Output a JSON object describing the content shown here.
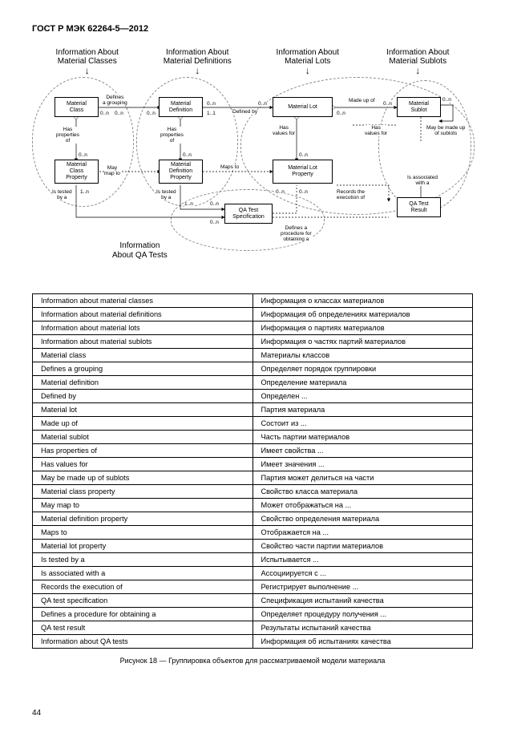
{
  "header": "ГОСТ Р МЭК 62264-5—2012",
  "group_titles": {
    "a": "Information About\nMaterial Classes",
    "b": "Information About\nMaterial Definitions",
    "c": "Information About\nMaterial Lots",
    "d": "Information About\nMaterial Sublots"
  },
  "boxes": {
    "mc": "Material\nClass",
    "md": "Material\nDefinition",
    "ml": "Material Lot",
    "ms": "Material\nSublot",
    "mcp": "Material\nClass\nProperty",
    "mdp": "Material\nDefinition\nProperty",
    "mlp": "Material Lot\nProperty",
    "qts": "QA Test\nSpecification",
    "qtr": "QA Test\nResult"
  },
  "edge_labels": {
    "defines_grouping": "Defines\na grouping",
    "defined_by": "Defined by",
    "made_up_of": "Made up of",
    "has_props": "Has\nproperties\nof",
    "has_values": "Has\nvalues for",
    "may_sublots": "May be made up\nof sublots",
    "may_map_to": "May\nmap to",
    "maps_to": "Maps to",
    "is_tested": "Is tested\nby a",
    "records_exec": "Records the\nexecution of",
    "is_assoc": "Is associated\nwith a",
    "def_proc": "Defines a\nprocedure for\nobtaining a"
  },
  "mult": {
    "zn": "0..n",
    "on": "1..n",
    "oo": "1..1"
  },
  "qa_label": "Information\nAbout QA Tests",
  "table": [
    [
      "Information about material classes",
      "Информация о классах материалов"
    ],
    [
      "Information about material definitions",
      "Информация об определениях материалов"
    ],
    [
      "Information about material lots",
      "Информация о партиях материалов"
    ],
    [
      "Information about material sublots",
      "Информация о частях партий материалов"
    ],
    [
      "Material class",
      "Материалы классов"
    ],
    [
      "Defines a grouping",
      "Определяет порядок группировки"
    ],
    [
      "Material definition",
      "Определение материала"
    ],
    [
      "Defined by",
      "Определен ..."
    ],
    [
      "Material lot",
      "Партия материала"
    ],
    [
      "Made up of",
      "Состоит из ..."
    ],
    [
      "Material sublot",
      "Часть партии материалов"
    ],
    [
      "Has properties of",
      "Имеет свойства ..."
    ],
    [
      "Has values for",
      "Имеет значения ..."
    ],
    [
      "May be made up of sublots",
      "Партия может делиться на части"
    ],
    [
      "Material class property",
      "Свойство класса материала"
    ],
    [
      "May map to",
      "Может отображаться на ..."
    ],
    [
      "Material definition property",
      "Свойство определения материала"
    ],
    [
      "Maps to",
      "Отображается на ..."
    ],
    [
      "Material lot property",
      "Свойство части партии материалов"
    ],
    [
      "Is tested by a",
      "Испытывается ..."
    ],
    [
      "Is associated with a",
      "Ассоциируется с ..."
    ],
    [
      "Records the execution of",
      "Регистрирует выполнение ..."
    ],
    [
      "QA test specification",
      "Спецификация испытаний качества"
    ],
    [
      "Defines a procedure for obtaining a",
      "Определяет процедуру получения ..."
    ],
    [
      "QA test result",
      "Результаты испытаний качества"
    ],
    [
      "Information about QA tests",
      "Информация об испытаниях качества"
    ]
  ],
  "caption": "Рисунок 18 — Группировка объектов для рассматриваемой модели материала",
  "pagenum": "44"
}
